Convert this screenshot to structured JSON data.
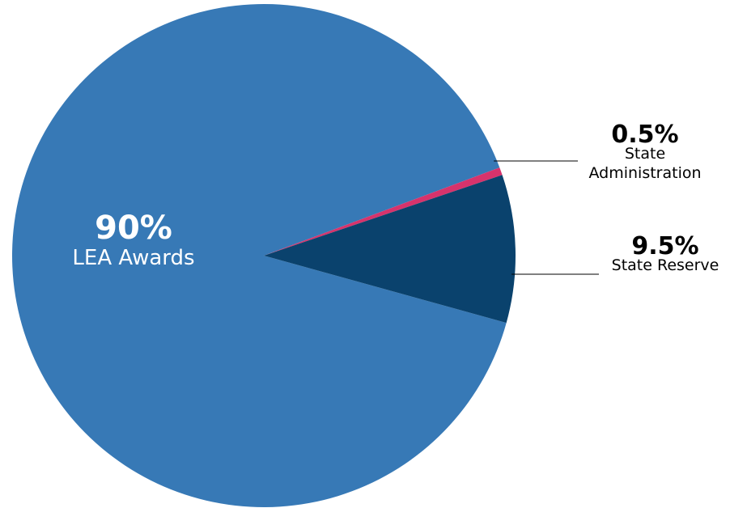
{
  "chart_data": {
    "type": "pie",
    "title": "",
    "slices": [
      {
        "name": "LEA Awards",
        "value": 90,
        "label_value": "90%",
        "label_lines": [
          "LEA Awards"
        ],
        "color": "#3779B6",
        "label_placement": "inside"
      },
      {
        "name": "State Administration",
        "value": 0.5,
        "label_value": "0.5%",
        "label_lines": [
          "State",
          "Administration"
        ],
        "color": "#D6336C",
        "label_placement": "outside"
      },
      {
        "name": "State Reserve",
        "value": 9.5,
        "label_value": "9.5%",
        "label_lines": [
          "State Reserve"
        ],
        "color": "#0A426D",
        "label_placement": "outside"
      }
    ],
    "leader_line_color": "#000000"
  }
}
